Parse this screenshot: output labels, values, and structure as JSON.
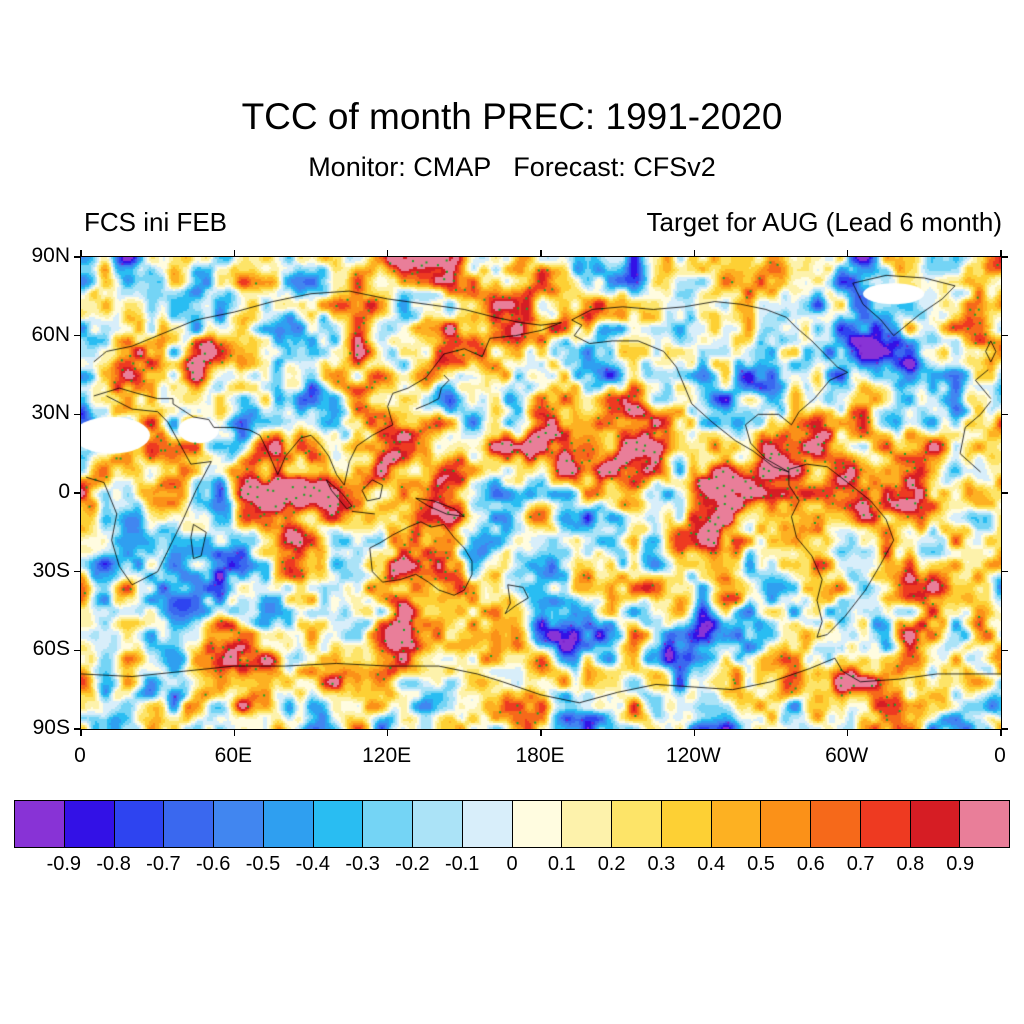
{
  "figure": {
    "title": "TCC of month PREC: 1991-2020",
    "subtitle": "Monitor: CMAP   Forecast: CFSv2",
    "annotation_left": "FCS ini FEB",
    "annotation_right": "Target for AUG (Lead 6 month)"
  },
  "chart_data": {
    "type": "heatmap",
    "subtype": "filled-contour-world-map",
    "title": "TCC of month PREC: 1991-2020",
    "subtitle": "Monitor: CMAP   Forecast: CFSv2",
    "annotation_left": "FCS ini FEB",
    "annotation_right": "Target for AUG (Lead 6 month)",
    "lon_range": [
      0,
      360
    ],
    "lat_range": [
      -90,
      90
    ],
    "x_ticks": [
      "0",
      "60E",
      "120E",
      "180E",
      "120W",
      "60W",
      "0"
    ],
    "x_tick_lons": [
      0,
      60,
      120,
      180,
      240,
      300,
      360
    ],
    "y_ticks": [
      "90N",
      "60N",
      "30N",
      "0",
      "30S",
      "60S",
      "90S"
    ],
    "y_tick_lats": [
      90,
      60,
      30,
      0,
      -30,
      -60,
      -90
    ],
    "value_range": [
      -1,
      1
    ],
    "legend_position": "bottom",
    "grid": false,
    "colorbar": {
      "levels": [
        -0.9,
        -0.8,
        -0.7,
        -0.6,
        -0.5,
        -0.4,
        -0.3,
        -0.2,
        -0.1,
        0,
        0.1,
        0.2,
        0.3,
        0.4,
        0.5,
        0.6,
        0.7,
        0.8,
        0.9
      ],
      "labels": [
        "-0.9",
        "-0.8",
        "-0.7",
        "-0.6",
        "-0.5",
        "-0.4",
        "-0.3",
        "-0.2",
        "-0.1",
        "0",
        "0.1",
        "0.2",
        "0.3",
        "0.4",
        "0.5",
        "0.6",
        "0.7",
        "0.8",
        "0.9"
      ],
      "colors": [
        "#8833d6",
        "#3311e6",
        "#2e44f0",
        "#3a68ef",
        "#4186f0",
        "#2f9ff0",
        "#29bdf2",
        "#74d4f5",
        "#abe3f7",
        "#d8eefa",
        "#fffce0",
        "#fdf2ab",
        "#fde468",
        "#fdd034",
        "#fdb122",
        "#fb9118",
        "#f6691a",
        "#ee3a21",
        "#d61d24",
        "#e97e99"
      ]
    },
    "stipple": {
      "positive_color": "#18a326",
      "negative_color": "#7a22cc"
    },
    "coastline_color": "#000000",
    "missing_data_color": "#ffffff"
  }
}
